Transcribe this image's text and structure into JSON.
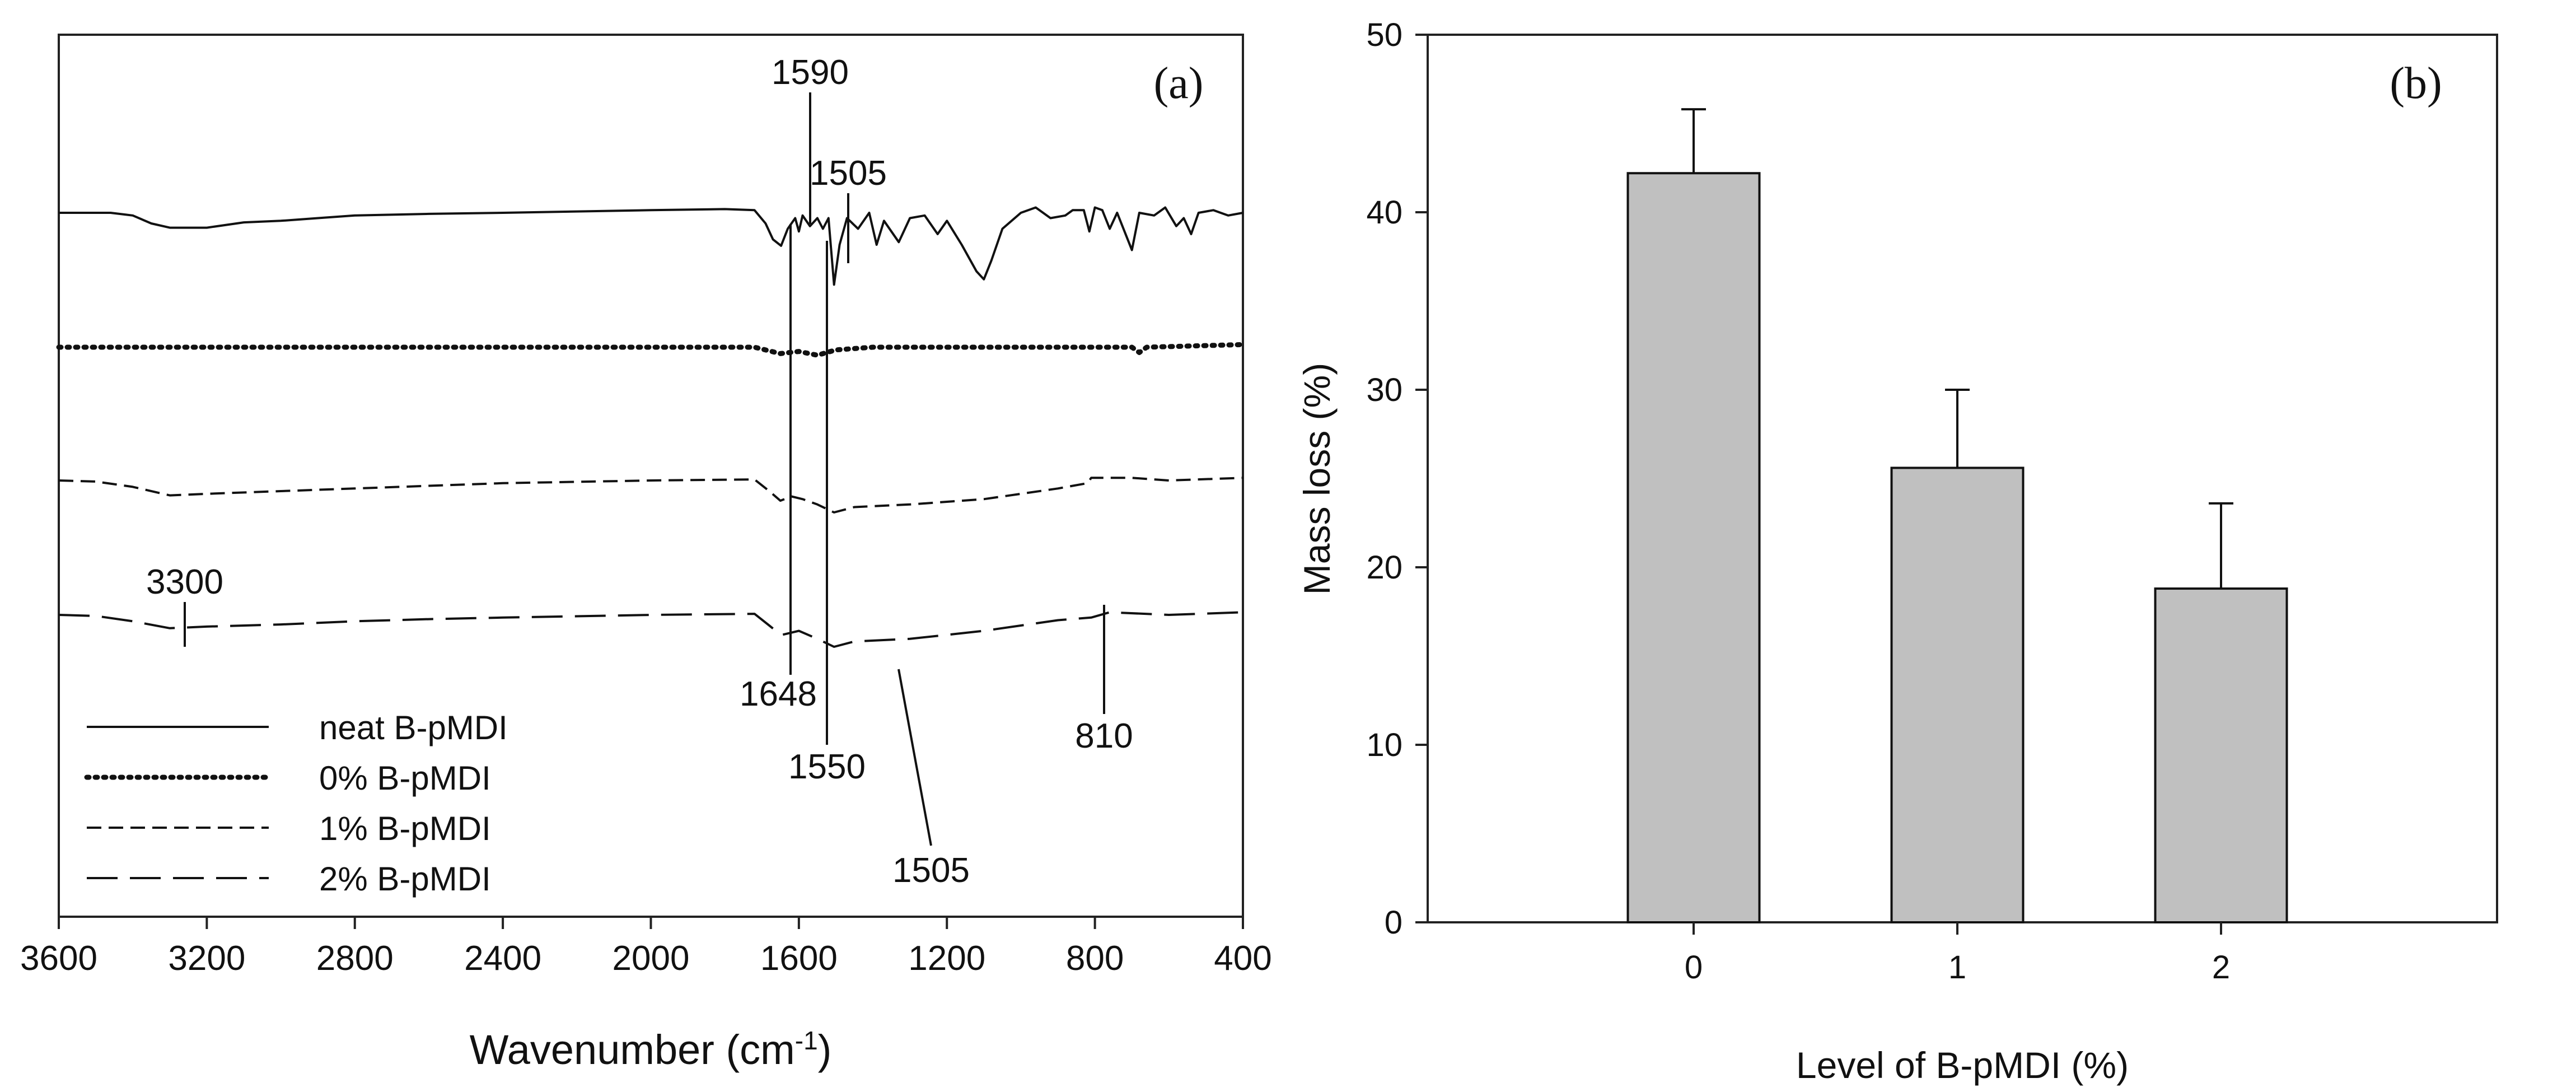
{
  "chart_data": [
    {
      "panel_label": "(a)",
      "type": "line",
      "xlabel_main": "Wavenumber (cm",
      "xlabel_sup": "-1",
      "xlabel_close": ")",
      "ylabel": "",
      "xlim": [
        3600,
        400
      ],
      "x_reversed": true,
      "xticks": [
        "3600",
        "3200",
        "2800",
        "2400",
        "2000",
        "1600",
        "1200",
        "800",
        "400"
      ],
      "yaxis_visible": false,
      "grid": false,
      "legend_position": "bottom-left",
      "series": [
        {
          "name": "neat B-pMDI",
          "style": "solid",
          "offset": 0,
          "points": [
            [
              3600,
              0.0
            ],
            [
              3460,
              0.0
            ],
            [
              3400,
              -0.05
            ],
            [
              3350,
              -0.2
            ],
            [
              3300,
              -0.28
            ],
            [
              3200,
              -0.28
            ],
            [
              3100,
              -0.18
            ],
            [
              3000,
              -0.15
            ],
            [
              2900,
              -0.1
            ],
            [
              2800,
              -0.05
            ],
            [
              2600,
              -0.02
            ],
            [
              2400,
              0.0
            ],
            [
              2000,
              0.05
            ],
            [
              1800,
              0.07
            ],
            [
              1720,
              0.05
            ],
            [
              1690,
              -0.2
            ],
            [
              1670,
              -0.5
            ],
            [
              1648,
              -0.62
            ],
            [
              1630,
              -0.3
            ],
            [
              1610,
              -0.1
            ],
            [
              1600,
              -0.35
            ],
            [
              1590,
              -0.05
            ],
            [
              1570,
              -0.25
            ],
            [
              1550,
              -0.1
            ],
            [
              1535,
              -0.3
            ],
            [
              1520,
              -0.1
            ],
            [
              1505,
              -1.35
            ],
            [
              1490,
              -0.6
            ],
            [
              1470,
              -0.1
            ],
            [
              1440,
              -0.3
            ],
            [
              1410,
              0.0
            ],
            [
              1390,
              -0.6
            ],
            [
              1370,
              -0.15
            ],
            [
              1330,
              -0.55
            ],
            [
              1300,
              -0.1
            ],
            [
              1260,
              -0.05
            ],
            [
              1225,
              -0.4
            ],
            [
              1200,
              -0.15
            ],
            [
              1160,
              -0.6
            ],
            [
              1120,
              -1.1
            ],
            [
              1100,
              -1.25
            ],
            [
              1080,
              -0.9
            ],
            [
              1050,
              -0.3
            ],
            [
              1000,
              0.0
            ],
            [
              960,
              0.1
            ],
            [
              920,
              -0.1
            ],
            [
              880,
              -0.05
            ],
            [
              860,
              0.05
            ],
            [
              830,
              0.05
            ],
            [
              815,
              -0.35
            ],
            [
              800,
              0.1
            ],
            [
              780,
              0.05
            ],
            [
              760,
              -0.3
            ],
            [
              740,
              0.0
            ],
            [
              700,
              -0.7
            ],
            [
              680,
              0.0
            ],
            [
              640,
              -0.05
            ],
            [
              610,
              0.1
            ],
            [
              580,
              -0.25
            ],
            [
              560,
              -0.1
            ],
            [
              540,
              -0.4
            ],
            [
              520,
              0.0
            ],
            [
              480,
              0.05
            ],
            [
              440,
              -0.05
            ],
            [
              400,
              0.0
            ]
          ]
        },
        {
          "name": "0% B-pMDI",
          "style": "dotted",
          "offset": -1.4,
          "points": [
            [
              3600,
              0.0
            ],
            [
              2000,
              0.0
            ],
            [
              1720,
              0.0
            ],
            [
              1650,
              -0.12
            ],
            [
              1600,
              -0.08
            ],
            [
              1550,
              -0.15
            ],
            [
              1500,
              -0.05
            ],
            [
              1400,
              0.0
            ],
            [
              700,
              0.0
            ],
            [
              680,
              -0.1
            ],
            [
              660,
              0.0
            ],
            [
              400,
              0.05
            ]
          ]
        },
        {
          "name": "1% B-pMDI",
          "style": "dashed",
          "offset": -2.8,
          "points": [
            [
              3600,
              0.0
            ],
            [
              3500,
              -0.02
            ],
            [
              3400,
              -0.12
            ],
            [
              3300,
              -0.28
            ],
            [
              3200,
              -0.25
            ],
            [
              3000,
              -0.2
            ],
            [
              2800,
              -0.15
            ],
            [
              2600,
              -0.1
            ],
            [
              2400,
              -0.05
            ],
            [
              2000,
              0.0
            ],
            [
              1720,
              0.02
            ],
            [
              1680,
              -0.2
            ],
            [
              1650,
              -0.38
            ],
            [
              1620,
              -0.3
            ],
            [
              1590,
              -0.35
            ],
            [
              1550,
              -0.45
            ],
            [
              1505,
              -0.6
            ],
            [
              1450,
              -0.5
            ],
            [
              1300,
              -0.45
            ],
            [
              1100,
              -0.35
            ],
            [
              900,
              -0.15
            ],
            [
              820,
              -0.05
            ],
            [
              810,
              0.05
            ],
            [
              700,
              0.05
            ],
            [
              600,
              0.0
            ],
            [
              400,
              0.05
            ]
          ]
        },
        {
          "name": "2% B-pMDI",
          "style": "longdash",
          "offset": -4.25,
          "points": [
            [
              3600,
              0.0
            ],
            [
              3500,
              -0.02
            ],
            [
              3400,
              -0.12
            ],
            [
              3300,
              -0.25
            ],
            [
              3200,
              -0.22
            ],
            [
              3000,
              -0.18
            ],
            [
              2800,
              -0.12
            ],
            [
              2600,
              -0.08
            ],
            [
              2400,
              -0.05
            ],
            [
              2000,
              0.0
            ],
            [
              1720,
              0.02
            ],
            [
              1680,
              -0.2
            ],
            [
              1648,
              -0.38
            ],
            [
              1600,
              -0.3
            ],
            [
              1550,
              -0.45
            ],
            [
              1505,
              -0.6
            ],
            [
              1450,
              -0.5
            ],
            [
              1300,
              -0.45
            ],
            [
              1100,
              -0.3
            ],
            [
              900,
              -0.1
            ],
            [
              810,
              -0.05
            ],
            [
              760,
              0.05
            ],
            [
              600,
              0.0
            ],
            [
              400,
              0.05
            ]
          ]
        }
      ],
      "annotations": [
        {
          "text": "1590",
          "x": 1590
        },
        {
          "text": "1505",
          "x": 1505
        },
        {
          "text": "3300",
          "x": 3300
        },
        {
          "text": "1648",
          "x": 1648
        },
        {
          "text": "1550",
          "x": 1550
        },
        {
          "text": "810",
          "x": 810
        },
        {
          "text": "1505",
          "x": 1505
        }
      ]
    },
    {
      "panel_label": "(b)",
      "type": "bar",
      "title": "",
      "xlabel": "Level of B-pMDI (%)",
      "ylabel": "Mass loss (%)",
      "categories": [
        "0",
        "1",
        "2"
      ],
      "values": [
        42.2,
        25.6,
        18.8
      ],
      "error_bars": [
        3.6,
        4.4,
        4.8
      ],
      "ylim": [
        0,
        50
      ],
      "yticks": [
        "0",
        "10",
        "20",
        "30",
        "40",
        "50"
      ],
      "bar_color": "#c0c0c0",
      "grid": false
    }
  ]
}
